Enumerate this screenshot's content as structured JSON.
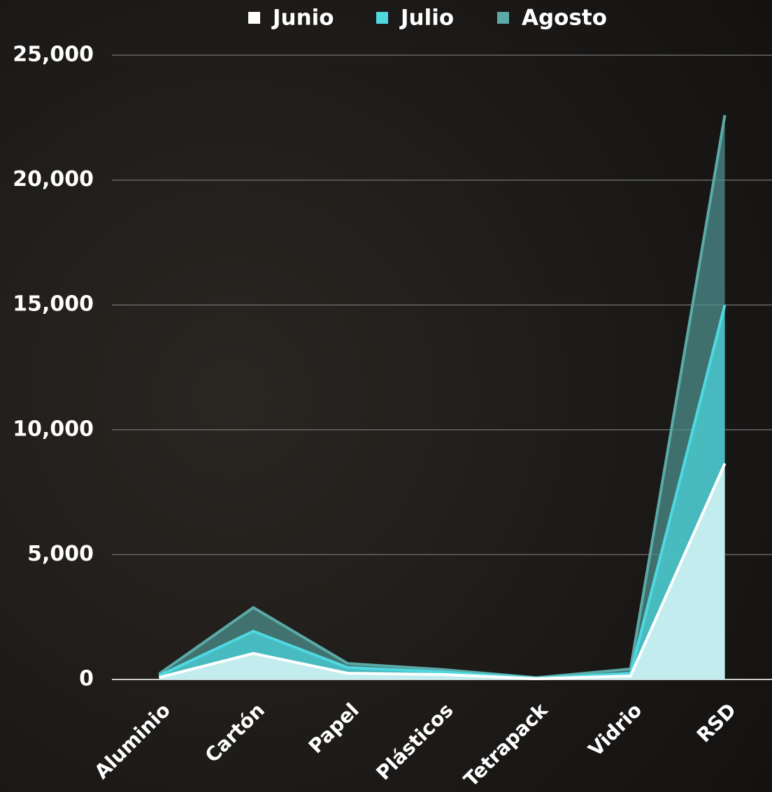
{
  "chart_data": {
    "type": "area",
    "categories": [
      "Aluminio",
      "Cartón",
      "Papel",
      "Plásticos",
      "Tetrapack",
      "Vidrio",
      "RSD"
    ],
    "series": [
      {
        "name": "Junio",
        "color": "#ffffff",
        "values": [
          80,
          1040,
          250,
          200,
          30,
          140,
          8650
        ]
      },
      {
        "name": "Julio",
        "color": "#4fd8e0",
        "values": [
          150,
          1930,
          480,
          300,
          50,
          250,
          15000
        ]
      },
      {
        "name": "Agosto",
        "color": "#5aaaa8",
        "values": [
          220,
          2880,
          640,
          400,
          70,
          420,
          22600
        ]
      }
    ],
    "ylim": [
      0,
      25000
    ],
    "yticks": [
      0,
      {
        "value": 5000,
        "label": "5,000"
      },
      {
        "value": 10000,
        "label": "10,000"
      },
      {
        "value": 15000,
        "label": "15,000"
      },
      {
        "value": 20000,
        "label": "20,000"
      },
      {
        "value": 25000,
        "label": "25,000"
      }
    ],
    "grid": true,
    "legend": "top"
  }
}
